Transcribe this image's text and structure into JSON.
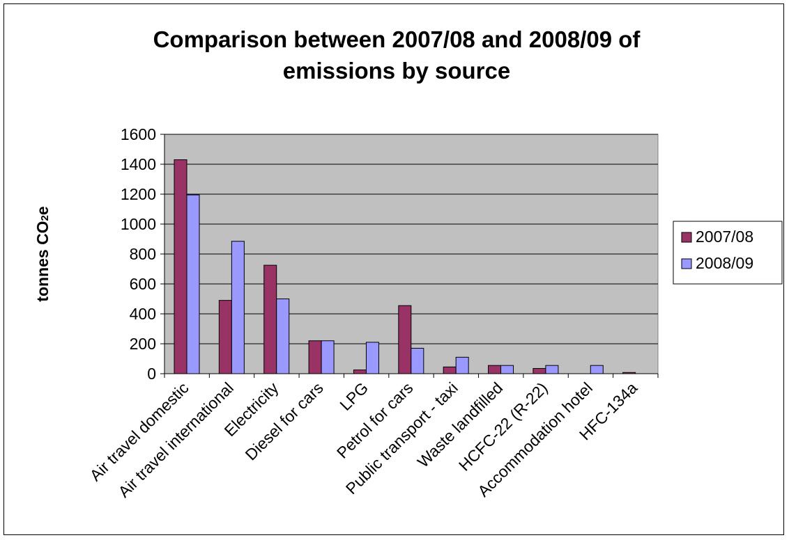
{
  "chart_data": {
    "type": "bar",
    "title_line1": "Comparison between 2007/08 and 2008/09 of",
    "title_line2": "emissions by source",
    "ylabel_main": "tonnes CO",
    "ylabel_sub": "2",
    "ylabel_suffix": "e",
    "xlabel": "",
    "ylim": [
      0,
      1600
    ],
    "yticks": [
      0,
      200,
      400,
      600,
      800,
      1000,
      1200,
      1400,
      1600
    ],
    "grid": true,
    "legend_position": "right",
    "categories": [
      "Air travel domestic",
      "Air travel international",
      "Electricity",
      "Diesel for cars",
      "LPG",
      "Petrol for cars",
      "Public transport - taxi",
      "Waste landfilled",
      "HCFC-22 (R-22)",
      "Accommodation hotel",
      "HFC-134a"
    ],
    "series": [
      {
        "name": "2007/08",
        "color": "#993366",
        "values": [
          1430,
          490,
          725,
          220,
          25,
          455,
          45,
          55,
          35,
          0,
          8
        ]
      },
      {
        "name": "2008/09",
        "color": "#9999FF",
        "values": [
          1195,
          885,
          500,
          220,
          210,
          170,
          110,
          55,
          55,
          55,
          0
        ]
      }
    ],
    "plot_bg": "#C0C0C0"
  }
}
